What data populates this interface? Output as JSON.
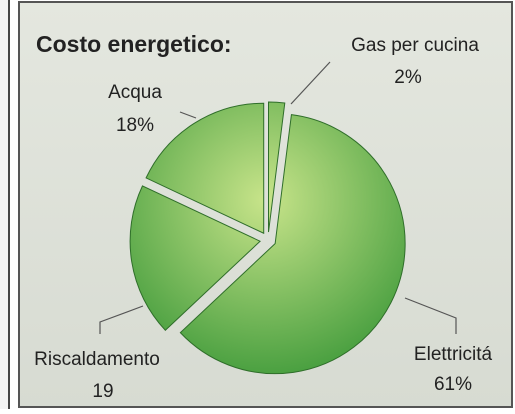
{
  "chart_data": {
    "type": "pie",
    "title": "Costo energetico:",
    "categories": [
      "Gas per cucina",
      "Elettricitá",
      "Riscaldamento",
      "Acqua"
    ],
    "values": [
      2,
      61,
      19,
      18
    ],
    "value_labels": [
      "2%",
      "61%",
      "19",
      "18%"
    ],
    "color": "#3f9a3a"
  }
}
